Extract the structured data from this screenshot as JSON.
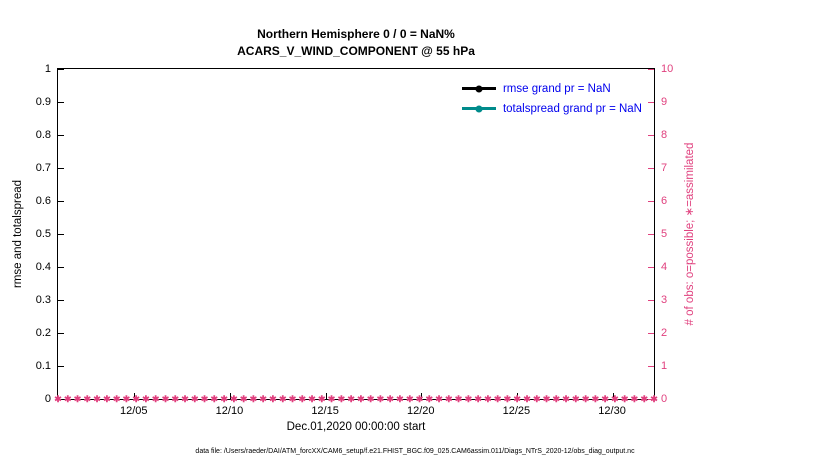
{
  "figure": {
    "footer": "data file: /Users/raeder/DAI/ATM_forcXX/CAM6_setup/f.e21.FHIST_BGC.f09_025.CAM6assim.011/Diags_NTrS_2020-12/obs_diag_output.nc"
  },
  "chart_data": {
    "type": "line",
    "title": "Northern Hemisphere 0 / 0 = NaN%",
    "subtitle": "ACARS_V_WIND_COMPONENT @ 55 hPa",
    "xlabel": "Dec.01,2020 00:00:00 start",
    "ylabel_left": "rmse and totalspread",
    "ylabel_right": "# of obs: o=possible; ∗=assimilated",
    "ylim_left": [
      0,
      1
    ],
    "ylim_right": [
      0,
      10
    ],
    "y_ticks_left": [
      "0",
      "0.1",
      "0.2",
      "0.3",
      "0.4",
      "0.5",
      "0.6",
      "0.7",
      "0.8",
      "0.9",
      "1"
    ],
    "y_ticks_right": [
      "0",
      "1",
      "2",
      "3",
      "4",
      "5",
      "6",
      "7",
      "8",
      "9",
      "10"
    ],
    "x_tick_labels": [
      "12/05",
      "12/10",
      "12/15",
      "12/20",
      "12/25",
      "12/30"
    ],
    "x_range": "Dec 01 2020 through Jan 01 2021",
    "grid": false,
    "legend_position": "upper right inside, no box",
    "legend_text_color": "#0000ee",
    "series": [
      {
        "name": "rmse",
        "legend": "rmse grand pr = NaN",
        "color": "#000000",
        "values": [],
        "note": "all values NaN - no line visible"
      },
      {
        "name": "totalspread",
        "legend": "totalspread grand pr = NaN",
        "color": "#008b8b",
        "values": [],
        "note": "all values NaN - no line visible"
      }
    ],
    "obs_counts": {
      "possible": 0,
      "assimilated": 0,
      "plotted_value": 0,
      "marker_color": "#e0407e",
      "marker_symbols": "o and *",
      "marker_count": 62,
      "note": "dense row of pink markers along y=0 on right axis scale"
    },
    "right_axis_color": "#e0407e"
  }
}
